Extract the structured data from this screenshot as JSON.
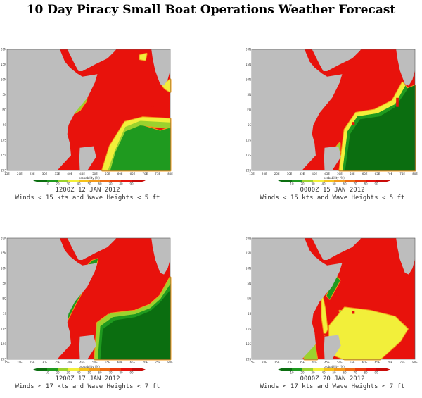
{
  "title": "10 Day Piracy Small Boat Operations Weather Forecast",
  "colors": {
    "land": "#bdbdbd",
    "high": "#e8120c",
    "mid": "#f39a1a",
    "yellow": "#f2ef3a",
    "lightgreen": "#9bd22e",
    "green": "#1f9a1f",
    "darkgreen": "#0b6e10"
  },
  "axes": {
    "x_ticks": [
      "15E",
      "20E",
      "25E",
      "30E",
      "35E",
      "40E",
      "45E",
      "50E",
      "55E",
      "60E",
      "65E",
      "70E",
      "75E",
      "80E"
    ],
    "y_ticks": [
      "20N",
      "15N",
      "10N",
      "5N",
      "EQ",
      "5S",
      "10S",
      "15S",
      "20S"
    ]
  },
  "colorbar": {
    "label": "probability (%)",
    "ticks": [
      "10",
      "20",
      "30",
      "40",
      "50",
      "60",
      "70",
      "80",
      "90"
    ]
  },
  "panels": [
    {
      "time": "1200Z 12 JAN 2012",
      "condition": "Winds < 15 kts and Wave Heights < 5 ft"
    },
    {
      "time": "0000Z 15 JAN 2012",
      "condition": "Winds < 15 kts and Wave Heights < 5 ft"
    },
    {
      "time": "1200Z 17 JAN 2012",
      "condition": "Winds < 17 kts and Wave Heights < 7 ft"
    },
    {
      "time": "0000Z 20 JAN 2012",
      "condition": "Winds < 17 kts and Wave Heights < 7 ft"
    }
  ]
}
